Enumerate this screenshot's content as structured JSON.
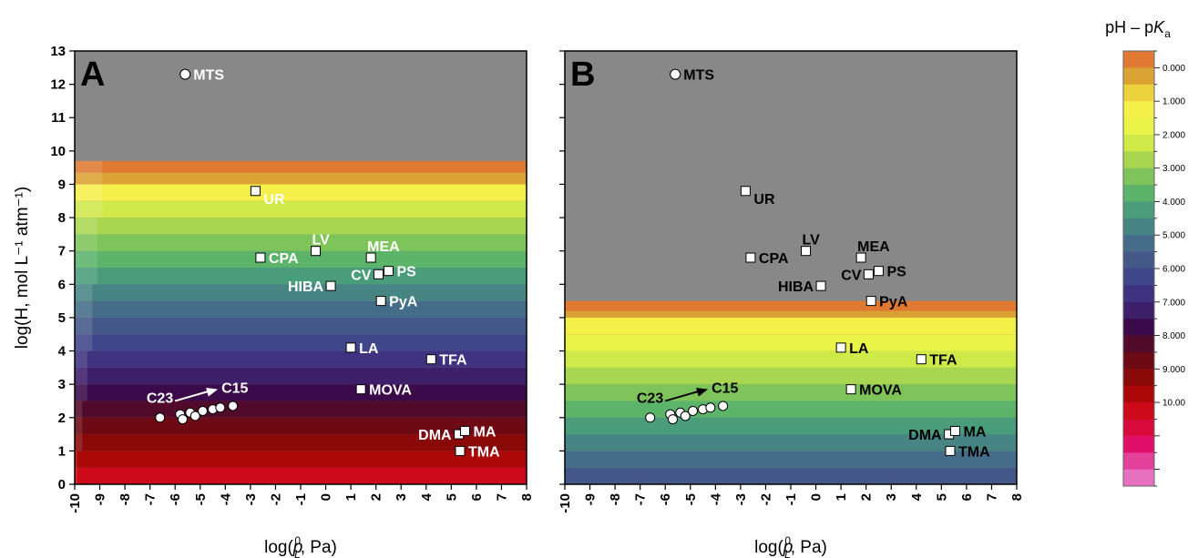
{
  "chart_data": [
    {
      "panel": "A",
      "type": "heatmap",
      "xlabel": "log(p_L^0, Pa)",
      "ylabel": "log(H, mol L⁻¹ atm⁻¹)",
      "xlim": [
        -10,
        8
      ],
      "ylim": [
        0,
        13
      ],
      "xticks": [
        "-10",
        "-9",
        "-8",
        "-7",
        "-6",
        "-5",
        "-4",
        "-3",
        "-2",
        "-1",
        "0",
        "1",
        "2",
        "3",
        "4",
        "5",
        "6",
        "7",
        "8"
      ],
      "yticks": [
        "0",
        "1",
        "2",
        "3",
        "4",
        "5",
        "6",
        "7",
        "8",
        "9",
        "10",
        "11",
        "12",
        "13"
      ],
      "grey_above": 9.7,
      "band_bottom": 0,
      "label_color": "#ffffff",
      "points": [
        {
          "label": "MTS",
          "x": -5.6,
          "y": 12.3,
          "marker": "circle",
          "label_side": "right"
        },
        {
          "label": "UR",
          "x": -2.8,
          "y": 8.8,
          "marker": "square",
          "label_side": "right-below"
        },
        {
          "label": "LV",
          "x": -0.4,
          "y": 7.0,
          "marker": "square",
          "label_side": "above"
        },
        {
          "label": "CPA",
          "x": -2.6,
          "y": 6.8,
          "marker": "square",
          "label_side": "right"
        },
        {
          "label": "MEA",
          "x": 1.8,
          "y": 6.8,
          "marker": "square",
          "label_side": "above"
        },
        {
          "label": "CV",
          "x": 2.1,
          "y": 6.3,
          "marker": "square",
          "label_side": "left"
        },
        {
          "label": "PS",
          "x": 2.5,
          "y": 6.4,
          "marker": "square",
          "label_side": "right"
        },
        {
          "label": "HIBA",
          "x": 0.2,
          "y": 5.95,
          "marker": "square",
          "label_side": "left"
        },
        {
          "label": "PyA",
          "x": 2.2,
          "y": 5.5,
          "marker": "square",
          "label_side": "right"
        },
        {
          "label": "LA",
          "x": 1.0,
          "y": 4.1,
          "marker": "square",
          "label_side": "right"
        },
        {
          "label": "TFA",
          "x": 4.2,
          "y": 3.75,
          "marker": "square",
          "label_side": "right"
        },
        {
          "label": "MOVA",
          "x": 1.4,
          "y": 2.85,
          "marker": "square",
          "label_side": "right"
        },
        {
          "label": "DMA",
          "x": 5.3,
          "y": 1.5,
          "marker": "square",
          "label_side": "left"
        },
        {
          "label": "MA",
          "x": 5.55,
          "y": 1.6,
          "marker": "square",
          "label_side": "right"
        },
        {
          "label": "TMA",
          "x": 5.35,
          "y": 1.0,
          "marker": "square",
          "label_side": "right"
        }
      ],
      "series_circles": [
        {
          "x": -6.6,
          "y": 2.0
        },
        {
          "x": -5.8,
          "y": 2.1
        },
        {
          "x": -5.7,
          "y": 1.95
        },
        {
          "x": -5.4,
          "y": 2.15
        },
        {
          "x": -5.2,
          "y": 2.05
        },
        {
          "x": -4.9,
          "y": 2.2
        },
        {
          "x": -4.5,
          "y": 2.25
        },
        {
          "x": -4.2,
          "y": 2.3
        },
        {
          "x": -3.7,
          "y": 2.35
        }
      ],
      "arrow_labels": {
        "start": "C23",
        "end": "C15"
      },
      "arrow": {
        "x1": -6.0,
        "y1": 2.5,
        "x2": -4.3,
        "y2": 2.85
      }
    },
    {
      "panel": "B",
      "type": "heatmap",
      "xlabel": "log(p_L^0, Pa)",
      "xlim": [
        -10,
        8
      ],
      "ylim": [
        0,
        13
      ],
      "xticks": [
        "-10",
        "-9",
        "-8",
        "-7",
        "-6",
        "-5",
        "-4",
        "-3",
        "-2",
        "-1",
        "0",
        "1",
        "2",
        "3",
        "4",
        "5",
        "6",
        "7",
        "8"
      ],
      "grey_above": 5.5,
      "band_bottom": 0,
      "label_color": "#000000",
      "points": [
        {
          "label": "MTS",
          "x": -5.6,
          "y": 12.3,
          "marker": "circle",
          "label_side": "right"
        },
        {
          "label": "UR",
          "x": -2.8,
          "y": 8.8,
          "marker": "square",
          "label_side": "right-below"
        },
        {
          "label": "LV",
          "x": -0.4,
          "y": 7.0,
          "marker": "square",
          "label_side": "above"
        },
        {
          "label": "CPA",
          "x": -2.6,
          "y": 6.8,
          "marker": "square",
          "label_side": "right"
        },
        {
          "label": "MEA",
          "x": 1.8,
          "y": 6.8,
          "marker": "square",
          "label_side": "above"
        },
        {
          "label": "CV",
          "x": 2.1,
          "y": 6.3,
          "marker": "square",
          "label_side": "left"
        },
        {
          "label": "PS",
          "x": 2.5,
          "y": 6.4,
          "marker": "square",
          "label_side": "right"
        },
        {
          "label": "HIBA",
          "x": 0.2,
          "y": 5.95,
          "marker": "square",
          "label_side": "left"
        },
        {
          "label": "PyA",
          "x": 2.2,
          "y": 5.5,
          "marker": "square",
          "label_side": "right"
        },
        {
          "label": "LA",
          "x": 1.0,
          "y": 4.1,
          "marker": "square",
          "label_side": "right"
        },
        {
          "label": "TFA",
          "x": 4.2,
          "y": 3.75,
          "marker": "square",
          "label_side": "right"
        },
        {
          "label": "MOVA",
          "x": 1.4,
          "y": 2.85,
          "marker": "square",
          "label_side": "right"
        },
        {
          "label": "DMA",
          "x": 5.3,
          "y": 1.5,
          "marker": "square",
          "label_side": "left"
        },
        {
          "label": "MA",
          "x": 5.55,
          "y": 1.6,
          "marker": "square",
          "label_side": "right"
        },
        {
          "label": "TMA",
          "x": 5.35,
          "y": 1.0,
          "marker": "square",
          "label_side": "right"
        }
      ],
      "series_circles": [
        {
          "x": -6.6,
          "y": 2.0
        },
        {
          "x": -5.8,
          "y": 2.1
        },
        {
          "x": -5.7,
          "y": 1.95
        },
        {
          "x": -5.4,
          "y": 2.15
        },
        {
          "x": -5.2,
          "y": 2.05
        },
        {
          "x": -4.9,
          "y": 2.2
        },
        {
          "x": -4.5,
          "y": 2.25
        },
        {
          "x": -4.2,
          "y": 2.3
        },
        {
          "x": -3.7,
          "y": 2.35
        }
      ],
      "arrow_labels": {
        "start": "C23",
        "end": "C15"
      },
      "arrow": {
        "x1": -6.0,
        "y1": 2.5,
        "x2": -4.3,
        "y2": 2.85
      }
    }
  ],
  "colorbar": {
    "title": "pH – pK_a",
    "labels": [
      "0.000",
      "1.000",
      "2.000",
      "3.000",
      "4.000",
      "5.000",
      "6.000",
      "7.000",
      "8.000",
      "9.000",
      "10.00"
    ],
    "colors": [
      "#e07a32",
      "#dba234",
      "#ecd23c",
      "#f5ef4a",
      "#eaf347",
      "#cfe949",
      "#a9d650",
      "#7fc45a",
      "#5cb36a",
      "#4a9d7a",
      "#468584",
      "#456d89",
      "#435889",
      "#40468a",
      "#3f3380",
      "#3d1f6a",
      "#3a0a4a",
      "#520a2a",
      "#6e0a14",
      "#8a0a0a",
      "#ad0808",
      "#cc0a1a",
      "#d80a3c",
      "#e0106a",
      "#e3409a",
      "#e770c0"
    ]
  },
  "bands": [
    {
      "lo": 0,
      "hi": 0.5,
      "color": "#435889"
    },
    {
      "lo": 0.5,
      "hi": 1.0,
      "color": "#456d89"
    },
    {
      "lo": 1.0,
      "hi": 1.5,
      "color": "#468584"
    },
    {
      "lo": 1.5,
      "hi": 2.0,
      "color": "#4a9d7a"
    },
    {
      "lo": 2.0,
      "hi": 2.5,
      "color": "#5cb36a"
    },
    {
      "lo": 2.5,
      "hi": 3.0,
      "color": "#7fc45a"
    },
    {
      "lo": 3.0,
      "hi": 3.5,
      "color": "#a9d650"
    },
    {
      "lo": 3.5,
      "hi": 4.0,
      "color": "#cfe949"
    },
    {
      "lo": 4.0,
      "hi": 4.5,
      "color": "#eaf347"
    },
    {
      "lo": 4.5,
      "hi": 5.0,
      "color": "#f5ef4a"
    },
    {
      "lo": 5.0,
      "hi": 5.2,
      "color": "#dba234"
    },
    {
      "lo": 5.2,
      "hi": 5.5,
      "color": "#e07a32"
    }
  ],
  "bandsA": [
    {
      "lo": 0,
      "hi": 0.5,
      "color": "#cc0a1a"
    },
    {
      "lo": 0.5,
      "hi": 1.0,
      "color": "#ad0808"
    },
    {
      "lo": 1.0,
      "hi": 1.5,
      "color": "#8a0a0a"
    },
    {
      "lo": 1.5,
      "hi": 2.0,
      "color": "#6e0a14"
    },
    {
      "lo": 2.0,
      "hi": 2.5,
      "color": "#520a2a"
    },
    {
      "lo": 2.5,
      "hi": 3.0,
      "color": "#3a0a4a"
    },
    {
      "lo": 3.0,
      "hi": 3.5,
      "color": "#3d1f6a"
    },
    {
      "lo": 3.5,
      "hi": 4.0,
      "color": "#3f3380"
    },
    {
      "lo": 4.0,
      "hi": 4.5,
      "color": "#40468a"
    },
    {
      "lo": 4.5,
      "hi": 5.0,
      "color": "#435889"
    },
    {
      "lo": 5.0,
      "hi": 5.5,
      "color": "#456d89"
    },
    {
      "lo": 5.5,
      "hi": 6.0,
      "color": "#468584"
    },
    {
      "lo": 6.0,
      "hi": 6.5,
      "color": "#4a9d7a"
    },
    {
      "lo": 6.5,
      "hi": 7.0,
      "color": "#5cb36a"
    },
    {
      "lo": 7.0,
      "hi": 7.5,
      "color": "#7fc45a"
    },
    {
      "lo": 7.5,
      "hi": 8.0,
      "color": "#a9d650"
    },
    {
      "lo": 8.0,
      "hi": 8.5,
      "color": "#cfe949"
    },
    {
      "lo": 8.5,
      "hi": 9.0,
      "color": "#f5ef4a"
    },
    {
      "lo": 9.0,
      "hi": 9.35,
      "color": "#dba234"
    },
    {
      "lo": 9.35,
      "hi": 9.7,
      "color": "#e07a32"
    }
  ],
  "grey_color": "#888888"
}
